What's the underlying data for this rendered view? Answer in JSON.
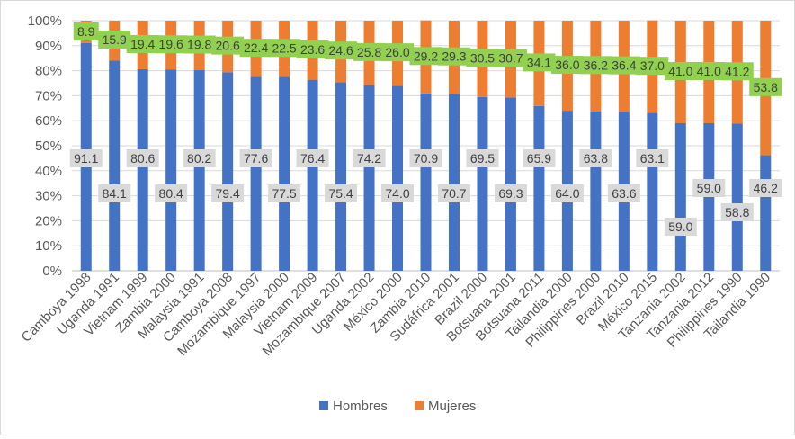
{
  "chart_data": {
    "type": "bar",
    "stacked": true,
    "percent": true,
    "categories": [
      "Camboya 1998",
      "Uganda 1991",
      "Vietnam 1999",
      "Zambia 2000",
      "Malaysia 1991",
      "Camboya 2008",
      "Mozambique 1997",
      "Malaysia 2000",
      "Vietnam 2009",
      "Mozambique 2007",
      "Uganda 2002",
      "México 2000",
      "Zambia 2010",
      "Sudáfrica 2001",
      "Brazil 2000",
      "Botsuana 2001",
      "Botsuana 2011",
      "Tailandia 2000",
      "Philippines 2000",
      "Brazil 2010",
      "México 2015",
      "Tanzania 2002",
      "Tanzania 2012",
      "Philippines 1990",
      "Tailandia 1990"
    ],
    "series": [
      {
        "name": "Hombres",
        "color": "#4472c4",
        "label_bg": "#d9d9d9",
        "values": [
          91.1,
          84.1,
          80.6,
          80.4,
          80.2,
          79.4,
          77.6,
          77.5,
          76.4,
          75.4,
          74.2,
          74.0,
          70.9,
          70.7,
          69.5,
          69.3,
          65.9,
          64.0,
          63.8,
          63.6,
          63.1,
          59.0,
          59.0,
          58.8,
          46.2
        ],
        "labels": [
          "91.1",
          "84.1",
          "80.6",
          "80.4",
          "80.2",
          "79.4",
          "77.6",
          "77.5",
          "76.4",
          "75.4",
          "74.2",
          "74.0",
          "70.9",
          "70.7",
          "69.5",
          "69.3",
          "65.9",
          "64.0",
          "63.8",
          "63.6",
          "63.1",
          "59.0",
          "59.0",
          "58.8",
          "46.2"
        ]
      },
      {
        "name": "Mujeres",
        "color": "#ed7d31",
        "label_bg": "#92d050",
        "values": [
          8.9,
          15.9,
          19.4,
          19.6,
          19.8,
          20.6,
          22.4,
          22.5,
          23.6,
          24.6,
          25.8,
          26.0,
          29.2,
          29.3,
          30.5,
          30.7,
          34.1,
          36.0,
          36.2,
          36.4,
          37.0,
          41.0,
          41.0,
          41.2,
          53.8
        ],
        "labels": [
          "8.9",
          "15.9",
          "19.4",
          "19.6",
          "19.8",
          "20.6",
          "22.4",
          "22.5",
          "23.6",
          "24.6",
          "25.8",
          "26.0",
          "29.2",
          "29.3",
          "30.5",
          "30.7",
          "34.1",
          "36.0",
          "36.2",
          "36.4",
          "37.0",
          "41.0",
          "41.0",
          "41.2",
          "53.8"
        ]
      }
    ],
    "y_ticks": [
      "0%",
      "10%",
      "20%",
      "30%",
      "40%",
      "50%",
      "60%",
      "70%",
      "80%",
      "90%",
      "100%"
    ],
    "ylim": [
      0,
      100
    ],
    "gridlines": true,
    "legend_position": "bottom"
  }
}
